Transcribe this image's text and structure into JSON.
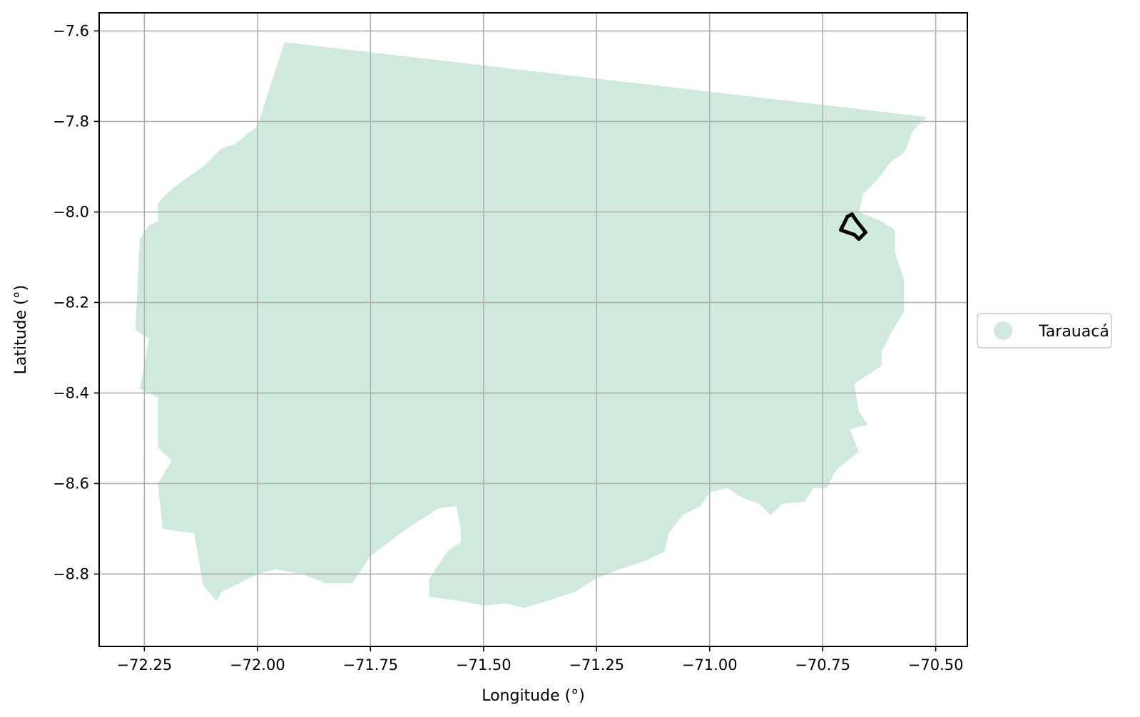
{
  "chart_data": {
    "type": "map",
    "xlabel": "Longitude (°)",
    "ylabel": "Latitude (°)",
    "xlim": [
      -72.35,
      -70.43
    ],
    "ylim": [
      -8.96,
      -7.56
    ],
    "grid": true,
    "x_ticks": [
      {
        "value": -72.25,
        "label": "−72.25"
      },
      {
        "value": -72.0,
        "label": "−72.00"
      },
      {
        "value": -71.75,
        "label": "−71.75"
      },
      {
        "value": -71.5,
        "label": "−71.50"
      },
      {
        "value": -71.25,
        "label": "−71.25"
      },
      {
        "value": -71.0,
        "label": "−71.00"
      },
      {
        "value": -70.75,
        "label": "−70.75"
      },
      {
        "value": -70.5,
        "label": "−70.50"
      }
    ],
    "y_ticks": [
      {
        "value": -7.6,
        "label": "−7.6"
      },
      {
        "value": -7.8,
        "label": "−7.8"
      },
      {
        "value": -8.0,
        "label": "−8.0"
      },
      {
        "value": -8.2,
        "label": "−8.2"
      },
      {
        "value": -8.4,
        "label": "−8.4"
      },
      {
        "value": -8.6,
        "label": "−8.6"
      },
      {
        "value": -8.8,
        "label": "−8.8"
      }
    ],
    "legend": {
      "placement": "right-center",
      "entries": [
        {
          "label": "Tarauacá",
          "color": "#cfeadd"
        }
      ]
    },
    "region": {
      "name": "Tarauacá",
      "color": "#cfeadd",
      "outline": [
        [
          -71.94,
          -7.625
        ],
        [
          -70.52,
          -7.79
        ],
        [
          -70.55,
          -7.82
        ],
        [
          -70.57,
          -7.87
        ],
        [
          -70.6,
          -7.89
        ],
        [
          -70.63,
          -7.93
        ],
        [
          -70.66,
          -7.96
        ],
        [
          -70.67,
          -8.0
        ],
        [
          -70.62,
          -8.02
        ],
        [
          -70.59,
          -8.04
        ],
        [
          -70.59,
          -8.09
        ],
        [
          -70.57,
          -8.15
        ],
        [
          -70.57,
          -8.22
        ],
        [
          -70.6,
          -8.27
        ],
        [
          -70.62,
          -8.31
        ],
        [
          -70.62,
          -8.34
        ],
        [
          -70.68,
          -8.38
        ],
        [
          -70.67,
          -8.44
        ],
        [
          -70.65,
          -8.47
        ],
        [
          -70.69,
          -8.48
        ],
        [
          -70.67,
          -8.53
        ],
        [
          -70.72,
          -8.57
        ],
        [
          -70.74,
          -8.61
        ],
        [
          -70.77,
          -8.61
        ],
        [
          -70.79,
          -8.64
        ],
        [
          -70.84,
          -8.645
        ],
        [
          -70.865,
          -8.67
        ],
        [
          -70.89,
          -8.645
        ],
        [
          -70.93,
          -8.63
        ],
        [
          -70.96,
          -8.61
        ],
        [
          -71.0,
          -8.62
        ],
        [
          -71.02,
          -8.65
        ],
        [
          -71.06,
          -8.67
        ],
        [
          -71.09,
          -8.71
        ],
        [
          -71.1,
          -8.75
        ],
        [
          -71.14,
          -8.77
        ],
        [
          -71.2,
          -8.79
        ],
        [
          -71.25,
          -8.81
        ],
        [
          -71.3,
          -8.84
        ],
        [
          -71.36,
          -8.86
        ],
        [
          -71.41,
          -8.875
        ],
        [
          -71.45,
          -8.865
        ],
        [
          -71.5,
          -8.87
        ],
        [
          -71.55,
          -8.86
        ],
        [
          -71.62,
          -8.85
        ],
        [
          -71.62,
          -8.81
        ],
        [
          -71.6,
          -8.78
        ],
        [
          -71.58,
          -8.75
        ],
        [
          -71.55,
          -8.73
        ],
        [
          -71.55,
          -8.7
        ],
        [
          -71.56,
          -8.65
        ],
        [
          -71.6,
          -8.655
        ],
        [
          -71.63,
          -8.675
        ],
        [
          -71.67,
          -8.7
        ],
        [
          -71.71,
          -8.73
        ],
        [
          -71.75,
          -8.76
        ],
        [
          -71.79,
          -8.82
        ],
        [
          -71.85,
          -8.82
        ],
        [
          -71.9,
          -8.8
        ],
        [
          -71.96,
          -8.79
        ],
        [
          -72.0,
          -8.8
        ],
        [
          -72.04,
          -8.82
        ],
        [
          -72.08,
          -8.84
        ],
        [
          -72.09,
          -8.86
        ],
        [
          -72.12,
          -8.825
        ],
        [
          -72.14,
          -8.71
        ],
        [
          -72.21,
          -8.7
        ],
        [
          -72.22,
          -8.6
        ],
        [
          -72.19,
          -8.55
        ],
        [
          -72.22,
          -8.52
        ],
        [
          -72.22,
          -8.41
        ],
        [
          -72.26,
          -8.39
        ],
        [
          -72.24,
          -8.28
        ],
        [
          -72.27,
          -8.26
        ],
        [
          -72.26,
          -8.06
        ],
        [
          -72.24,
          -8.03
        ],
        [
          -72.22,
          -8.02
        ],
        [
          -72.22,
          -7.98
        ],
        [
          -72.19,
          -7.95
        ],
        [
          -72.15,
          -7.92
        ],
        [
          -72.12,
          -7.9
        ],
        [
          -72.08,
          -7.86
        ],
        [
          -72.05,
          -7.85
        ],
        [
          -72.0,
          -7.81
        ]
      ]
    },
    "marker": {
      "outline": [
        [
          -70.71,
          -8.04
        ],
        [
          -70.695,
          -8.01
        ],
        [
          -70.685,
          -8.005
        ],
        [
          -70.675,
          -8.02
        ],
        [
          -70.655,
          -8.045
        ],
        [
          -70.67,
          -8.06
        ],
        [
          -70.68,
          -8.05
        ],
        [
          -70.71,
          -8.04
        ]
      ],
      "color": "#000000"
    }
  }
}
